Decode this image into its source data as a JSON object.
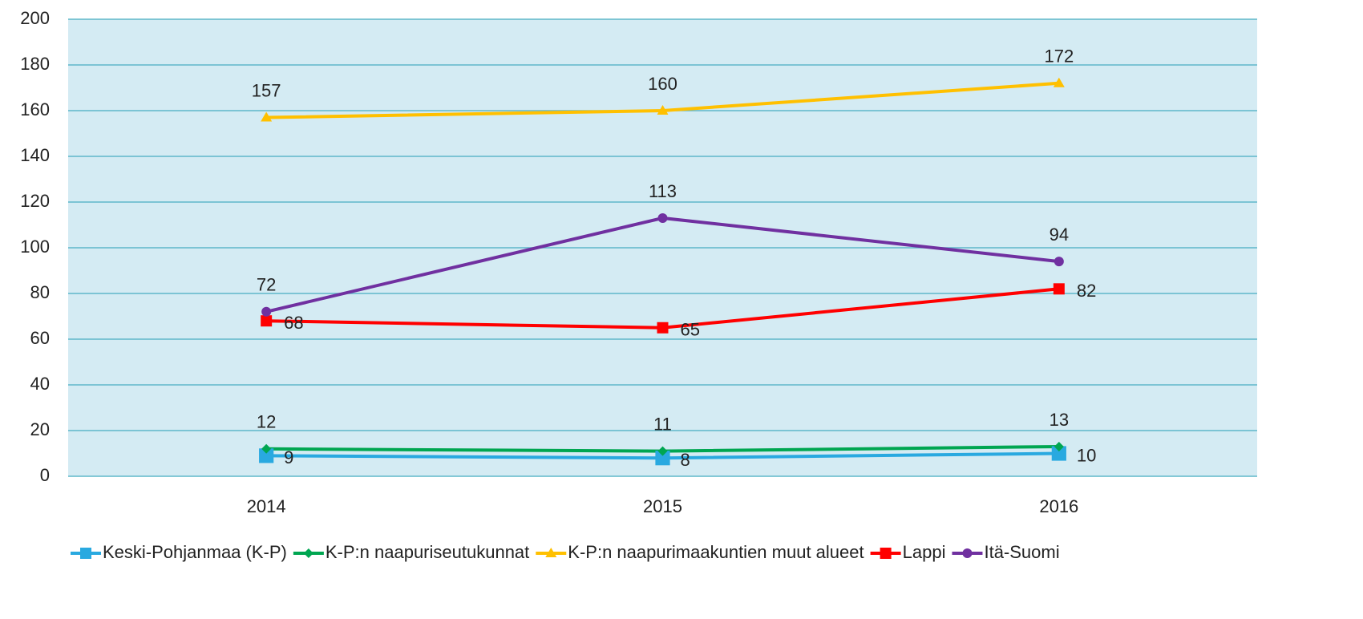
{
  "chart_data": {
    "type": "line",
    "categories": [
      "2014",
      "2015",
      "2016"
    ],
    "series": [
      {
        "name": "Keski-Pohjanmaa (K-P)",
        "color": "#29a9e0",
        "marker": "square",
        "values": [
          9,
          8,
          10
        ]
      },
      {
        "name": "K-P:n naapuriseutukunnat",
        "color": "#00a651",
        "marker": "diamond",
        "values": [
          12,
          11,
          13
        ]
      },
      {
        "name": "K-P:n naapurimaakuntien muut alueet",
        "color": "#ffc000",
        "marker": "triangle",
        "values": [
          157,
          160,
          172
        ]
      },
      {
        "name": "Lappi",
        "color": "#ff0000",
        "marker": "square",
        "values": [
          68,
          65,
          82
        ]
      },
      {
        "name": "Itä-Suomi",
        "color": "#7030a0",
        "marker": "circle",
        "values": [
          72,
          113,
          94
        ]
      }
    ],
    "ylim": [
      0,
      200
    ],
    "yticks": [
      0,
      20,
      40,
      60,
      80,
      100,
      120,
      140,
      160,
      180,
      200
    ],
    "grid": true,
    "legend": "bottom"
  }
}
